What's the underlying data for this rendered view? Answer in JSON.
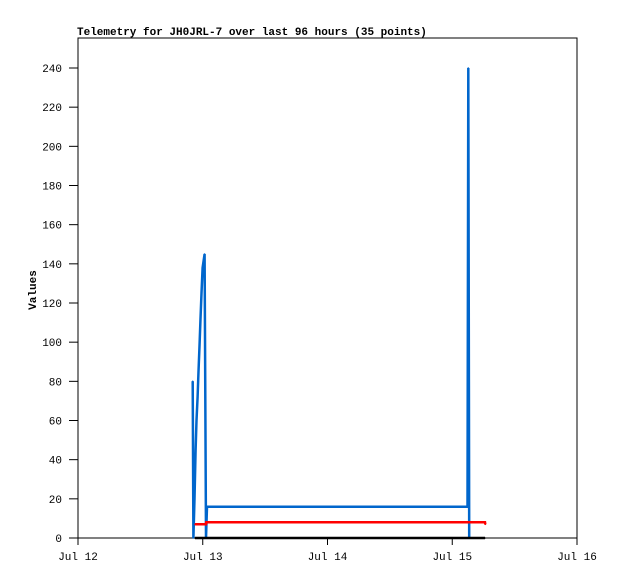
{
  "chart_data": {
    "type": "line",
    "title": "Telemetry for JH0JRL-7 over last 96 hours (35 points)",
    "xlabel": "",
    "ylabel": "Values",
    "xlim": [
      "07-12 00:00",
      "07-16 00:00"
    ],
    "ylim": [
      0,
      255
    ],
    "x_ticks": [
      {
        "at": "07-12 00:00",
        "label": "Jul 12"
      },
      {
        "at": "07-13 00:00",
        "label": "Jul 13"
      },
      {
        "at": "07-14 00:00",
        "label": "Jul 14"
      },
      {
        "at": "07-15 00:00",
        "label": "Jul 15"
      },
      {
        "at": "07-16 00:00",
        "label": "Jul 16"
      }
    ],
    "y_ticks": [
      0,
      20,
      40,
      60,
      80,
      100,
      120,
      140,
      160,
      180,
      200,
      220,
      240
    ],
    "grid": false,
    "legend": "none",
    "series": [
      {
        "color": "#0066cc",
        "points": [
          [
            "07-12 22:04",
            80
          ],
          [
            "07-12 22:12",
            0
          ],
          [
            "07-12 22:25",
            20
          ],
          [
            "07-12 22:37",
            45
          ],
          [
            "07-12 22:48",
            60
          ],
          [
            "07-12 23:00",
            72
          ],
          [
            "07-12 23:11",
            85
          ],
          [
            "07-12 23:23",
            98
          ],
          [
            "07-12 23:34",
            112
          ],
          [
            "07-12 23:46",
            125
          ],
          [
            "07-12 23:58",
            138
          ],
          [
            "07-13 00:21",
            145
          ],
          [
            "07-13 00:29",
            72
          ],
          [
            "07-13 00:38",
            0
          ],
          [
            "07-13 00:49",
            16
          ],
          [
            "07-15 02:56",
            16
          ],
          [
            "07-15 03:05",
            240
          ],
          [
            "07-15 03:16",
            0
          ]
        ]
      },
      {
        "color": "#ff0000",
        "points": [
          [
            "07-12 22:31",
            7
          ],
          [
            "07-13 00:38",
            7
          ],
          [
            "07-13 00:40",
            8
          ],
          [
            "07-15 06:18",
            8
          ],
          [
            "07-15 06:22",
            7
          ]
        ]
      },
      {
        "color": "#000000",
        "points": [
          [
            "07-12 22:31",
            0
          ],
          [
            "07-15 06:18",
            0
          ]
        ]
      }
    ]
  }
}
